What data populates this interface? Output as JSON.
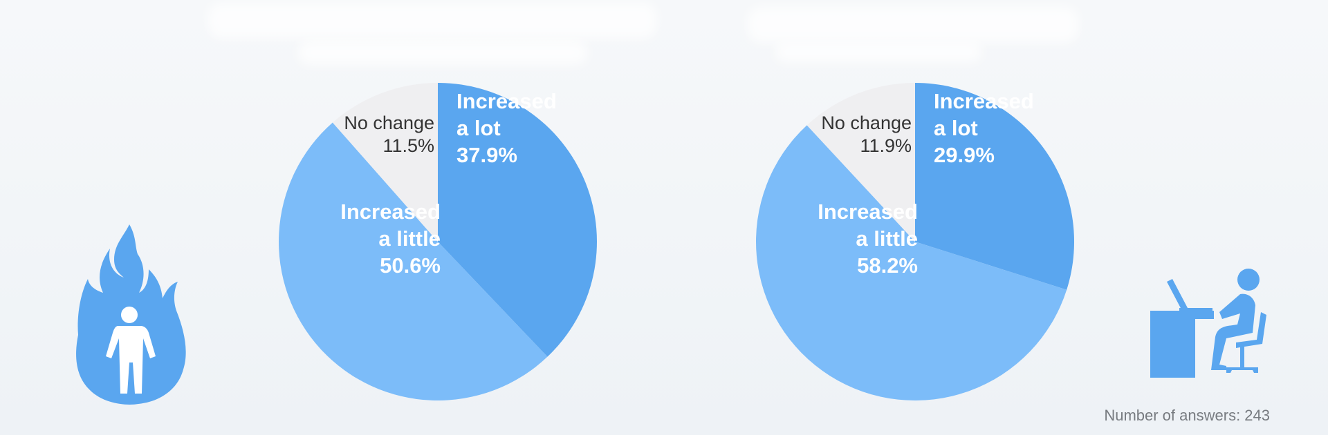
{
  "colors": {
    "increased_a_lot": "#5aa6ef",
    "increased_a_little": "#7cbcf9",
    "no_change": "#efeff1",
    "icon": "#5aa6ef",
    "dark_text": "#333333",
    "light_text": "#ffffff"
  },
  "chart_data": [
    {
      "type": "pie",
      "title": "",
      "slices": [
        {
          "label": "Increased a lot",
          "lines": [
            "Increased",
            "a lot"
          ],
          "value": 37.9,
          "value_text": "37.9%",
          "color": "#5aa6ef"
        },
        {
          "label": "Increased a little",
          "lines": [
            "Increased",
            "a little"
          ],
          "value": 50.6,
          "value_text": "50.6%",
          "color": "#7cbcf9"
        },
        {
          "label": "No change",
          "lines": [
            "No change"
          ],
          "value": 11.5,
          "value_text": "11.5%",
          "color": "#efeff1"
        }
      ],
      "start_angle": "12 o'clock",
      "direction": "clockwise",
      "legend": "none"
    },
    {
      "type": "pie",
      "title": "",
      "slices": [
        {
          "label": "Increased a lot",
          "lines": [
            "Increased",
            "a lot"
          ],
          "value": 29.9,
          "value_text": "29.9%",
          "color": "#5aa6ef"
        },
        {
          "label": "Increased a little",
          "lines": [
            "Increased",
            "a little"
          ],
          "value": 58.2,
          "value_text": "58.2%",
          "color": "#7cbcf9"
        },
        {
          "label": "No change",
          "lines": [
            "No change"
          ],
          "value": 11.9,
          "value_text": "11.9%",
          "color": "#efeff1"
        }
      ],
      "start_angle": "12 o'clock",
      "direction": "clockwise",
      "legend": "none"
    }
  ],
  "icons": {
    "left": "person-in-flames-icon",
    "right": "person-at-desk-icon"
  },
  "footer": {
    "answers_text": "Number of answers: 243"
  }
}
